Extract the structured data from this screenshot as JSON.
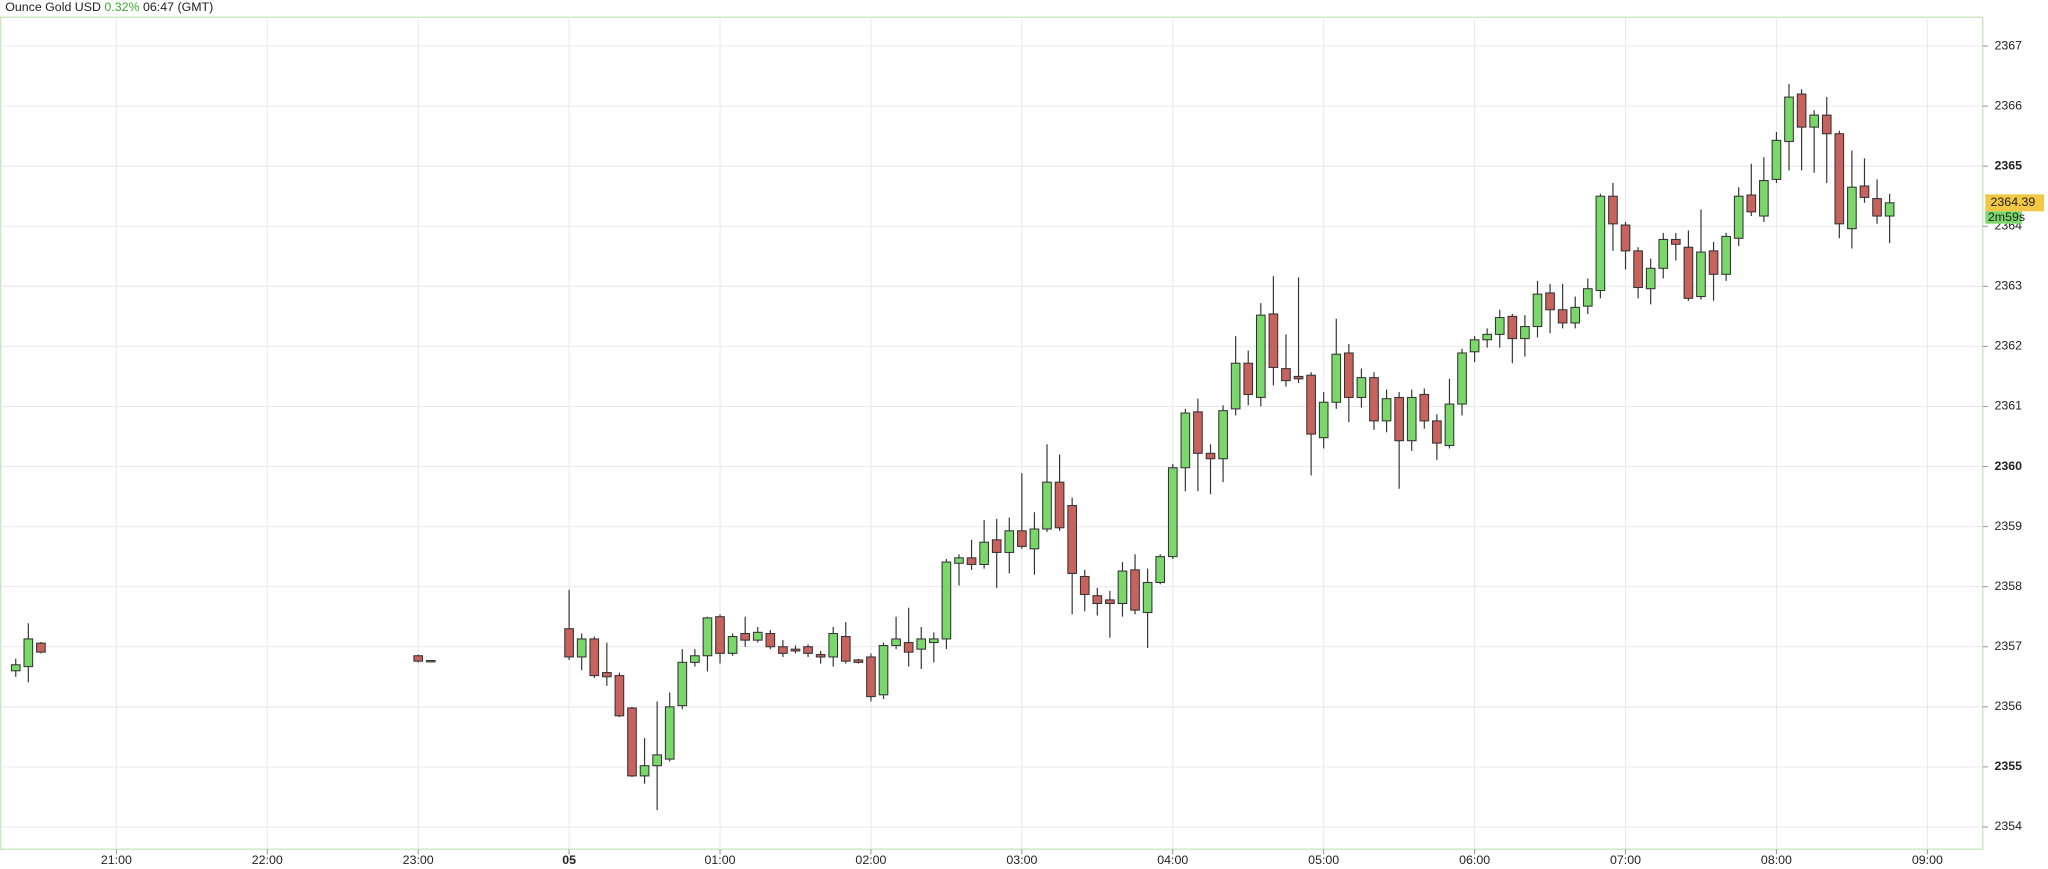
{
  "chart_data": {
    "type": "candlestick",
    "title": "Ounce Gold USD",
    "change": "0.32%",
    "change_color": "#3daa2e",
    "time": "06:47 (GMT)",
    "last_price": 2364.39,
    "countdown": "2m59s",
    "up_color": "#7ad86b",
    "down_color": "#c8625c",
    "grid": true,
    "ylim": [
      2353.63,
      2367.48
    ],
    "yticks": [
      2354,
      2355,
      2356,
      2357,
      2358,
      2359,
      2360,
      2361,
      2362,
      2363,
      2364,
      2365,
      2366,
      2367
    ],
    "xlim": [
      "20:14",
      "09:22"
    ],
    "xticks": [
      "21:00",
      "22:00",
      "23:00",
      {
        "value": "00:00",
        "label": "05"
      },
      "01:00",
      "02:00",
      "03:00",
      "04:00",
      "05:00",
      "06:00",
      "07:00",
      "08:00",
      "09:00"
    ],
    "x": [
      "20:20",
      "20:25",
      "20:30",
      "23:00",
      "23:05",
      "00:00",
      "00:05",
      "00:10",
      "00:15",
      "00:20",
      "00:25",
      "00:30",
      "00:35",
      "00:40",
      "00:45",
      "00:50",
      "00:55",
      "01:00",
      "01:05",
      "01:10",
      "01:15",
      "01:20",
      "01:25",
      "01:30",
      "01:35",
      "01:40",
      "01:45",
      "01:50",
      "01:55",
      "02:00",
      "02:05",
      "02:10",
      "02:15",
      "02:20",
      "02:25",
      "02:30",
      "02:35",
      "02:40",
      "02:45",
      "02:50",
      "02:55",
      "03:00",
      "03:05",
      "03:10",
      "03:15",
      "03:20",
      "03:25",
      "03:30",
      "03:35",
      "03:40",
      "03:45",
      "03:50",
      "03:55",
      "04:00",
      "04:05",
      "04:10",
      "04:15",
      "04:20",
      "04:25",
      "04:30",
      "04:35",
      "04:40",
      "04:45",
      "04:50",
      "04:55",
      "05:00",
      "05:05",
      "05:10",
      "05:15",
      "05:20",
      "05:25",
      "05:30",
      "05:35",
      "05:40",
      "05:45",
      "05:50",
      "05:55",
      "06:00",
      "06:05",
      "06:10",
      "06:15",
      "06:20",
      "06:25",
      "06:30",
      "06:35",
      "06:40",
      "06:45",
      "06:50",
      "06:55",
      "07:00",
      "07:05",
      "07:10",
      "07:15",
      "07:20",
      "07:25",
      "07:30",
      "07:35",
      "07:40",
      "07:45",
      "07:50",
      "07:55",
      "08:00",
      "08:05",
      "08:10",
      "08:15",
      "08:20",
      "08:25",
      "08:30",
      "08:35",
      "08:40",
      "08:45"
    ],
    "open": [
      2356.6,
      2356.67,
      2357.06,
      2356.85,
      2356.77,
      2357.3,
      2356.83,
      2357.13,
      2356.57,
      2356.52,
      2355.98,
      2354.85,
      2355.02,
      2355.13,
      2356.02,
      2356.74,
      2356.85,
      2357.5,
      2356.89,
      2357.22,
      2357.11,
      2357.22,
      2357.0,
      2356.96,
      2357.0,
      2356.87,
      2356.83,
      2357.17,
      2356.78,
      2356.83,
      2356.2,
      2357.02,
      2357.07,
      2356.96,
      2357.07,
      2357.13,
      2358.39,
      2358.48,
      2358.37,
      2358.78,
      2358.57,
      2358.93,
      2358.63,
      2358.96,
      2359.74,
      2359.35,
      2358.17,
      2357.85,
      2357.78,
      2357.72,
      2358.28,
      2357.57,
      2358.07,
      2358.5,
      2359.98,
      2360.91,
      2360.22,
      2360.13,
      2360.96,
      2361.72,
      2361.15,
      2362.54,
      2361.63,
      2361.5,
      2361.52,
      2360.48,
      2361.07,
      2361.89,
      2361.15,
      2361.48,
      2360.76,
      2361.15,
      2360.43,
      2361.2,
      2360.76,
      2360.35,
      2361.04,
      2361.91,
      2362.11,
      2362.2,
      2362.5,
      2362.13,
      2362.33,
      2362.89,
      2362.61,
      2362.39,
      2362.67,
      2362.93,
      2364.5,
      2364.02,
      2363.59,
      2362.96,
      2363.3,
      2363.78,
      2363.65,
      2362.83,
      2363.59,
      2363.2,
      2363.8,
      2364.52,
      2364.17,
      2364.78,
      2365.41,
      2366.2,
      2365.65,
      2365.85,
      2365.54,
      2363.96,
      2364.67,
      2364.46,
      2364.17
    ],
    "high": [
      2356.8,
      2357.39,
      2357.08,
      2356.87,
      2356.77,
      2357.95,
      2357.22,
      2357.17,
      2357.07,
      2356.57,
      2356.0,
      2355.48,
      2356.09,
      2356.24,
      2356.96,
      2356.96,
      2357.5,
      2357.54,
      2357.22,
      2357.5,
      2357.33,
      2357.28,
      2357.11,
      2357.02,
      2357.04,
      2356.93,
      2357.33,
      2357.41,
      2356.8,
      2356.89,
      2357.07,
      2357.5,
      2357.65,
      2357.33,
      2357.24,
      2358.46,
      2358.54,
      2358.78,
      2359.11,
      2359.13,
      2359.15,
      2359.89,
      2359.24,
      2360.37,
      2360.2,
      2359.48,
      2358.28,
      2357.98,
      2357.93,
      2358.41,
      2358.54,
      2358.3,
      2358.54,
      2360.04,
      2360.96,
      2361.13,
      2360.37,
      2361.02,
      2362.17,
      2361.93,
      2362.72,
      2363.17,
      2362.2,
      2363.15,
      2361.57,
      2361.24,
      2362.46,
      2362.04,
      2361.63,
      2361.57,
      2361.28,
      2361.24,
      2361.28,
      2361.3,
      2360.87,
      2361.46,
      2361.96,
      2362.17,
      2362.3,
      2362.61,
      2362.54,
      2362.52,
      2363.09,
      2363.04,
      2363.04,
      2362.83,
      2363.13,
      2364.54,
      2364.72,
      2364.07,
      2363.65,
      2363.46,
      2363.89,
      2363.89,
      2363.93,
      2364.28,
      2363.74,
      2363.89,
      2364.65,
      2365.04,
      2365.15,
      2365.57,
      2366.37,
      2366.28,
      2365.93,
      2366.15,
      2365.59,
      2365.26,
      2365.13,
      2364.78,
      2364.54
    ],
    "low": [
      2356.5,
      2356.41,
      2356.89,
      2356.74,
      2356.77,
      2356.78,
      2356.61,
      2356.48,
      2356.35,
      2355.83,
      2354.83,
      2354.72,
      2354.28,
      2355.09,
      2355.96,
      2356.67,
      2356.59,
      2356.72,
      2356.85,
      2357.0,
      2357.07,
      2356.96,
      2356.83,
      2356.89,
      2356.83,
      2356.72,
      2356.67,
      2356.72,
      2356.72,
      2356.09,
      2356.13,
      2356.96,
      2356.67,
      2356.63,
      2356.74,
      2356.96,
      2358.02,
      2358.28,
      2358.3,
      2357.98,
      2358.22,
      2358.63,
      2358.2,
      2358.91,
      2358.93,
      2357.54,
      2357.59,
      2357.52,
      2357.15,
      2357.5,
      2357.54,
      2356.98,
      2358.04,
      2358.46,
      2359.59,
      2359.59,
      2359.54,
      2359.74,
      2360.85,
      2361.02,
      2361.0,
      2361.35,
      2361.33,
      2361.39,
      2359.85,
      2360.3,
      2360.96,
      2360.74,
      2360.98,
      2360.61,
      2360.57,
      2359.63,
      2360.26,
      2360.63,
      2360.11,
      2360.3,
      2360.85,
      2361.74,
      2361.98,
      2361.98,
      2361.72,
      2361.83,
      2362.15,
      2362.22,
      2362.3,
      2362.3,
      2362.54,
      2362.8,
      2363.59,
      2363.28,
      2362.8,
      2362.7,
      2363.13,
      2363.43,
      2362.76,
      2362.78,
      2362.76,
      2363.09,
      2363.67,
      2364.17,
      2364.07,
      2364.72,
      2364.93,
      2364.93,
      2364.89,
      2364.72,
      2363.8,
      2363.63,
      2364.39,
      2364.04,
      2363.72
    ],
    "close": [
      2356.7,
      2357.13,
      2356.91,
      2356.76,
      2356.77,
      2356.83,
      2357.13,
      2356.52,
      2356.5,
      2355.85,
      2354.85,
      2355.02,
      2355.2,
      2356.0,
      2356.74,
      2356.85,
      2357.48,
      2356.89,
      2357.17,
      2357.11,
      2357.24,
      2357.0,
      2356.89,
      2356.93,
      2356.89,
      2356.83,
      2357.22,
      2356.76,
      2356.74,
      2356.17,
      2357.02,
      2357.13,
      2356.91,
      2357.13,
      2357.13,
      2358.41,
      2358.48,
      2358.37,
      2358.74,
      2358.57,
      2358.93,
      2358.67,
      2358.96,
      2359.74,
      2358.98,
      2358.22,
      2357.87,
      2357.72,
      2357.72,
      2358.26,
      2357.61,
      2358.07,
      2358.5,
      2359.98,
      2360.89,
      2360.22,
      2360.13,
      2360.93,
      2361.72,
      2361.2,
      2362.52,
      2361.65,
      2361.43,
      2361.46,
      2360.54,
      2361.07,
      2361.87,
      2361.15,
      2361.48,
      2360.76,
      2361.13,
      2360.43,
      2361.15,
      2360.76,
      2360.39,
      2361.04,
      2361.89,
      2362.11,
      2362.2,
      2362.48,
      2362.13,
      2362.33,
      2362.87,
      2362.61,
      2362.39,
      2362.65,
      2362.96,
      2364.5,
      2364.04,
      2363.59,
      2362.98,
      2363.3,
      2363.78,
      2363.7,
      2362.8,
      2363.57,
      2363.2,
      2363.83,
      2364.5,
      2364.24,
      2364.76,
      2365.43,
      2366.15,
      2365.65,
      2365.85,
      2365.54,
      2364.04,
      2364.65,
      2364.48,
      2364.17,
      2364.39
    ]
  }
}
